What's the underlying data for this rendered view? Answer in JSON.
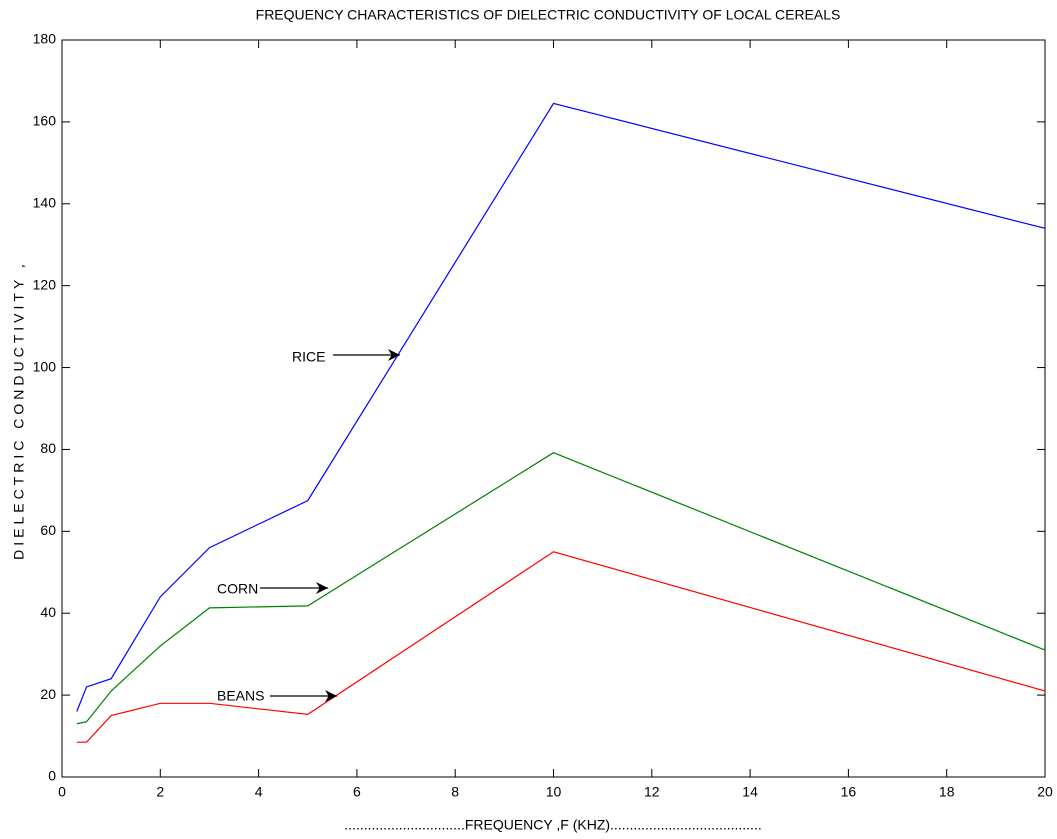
{
  "chart_data": {
    "type": "line",
    "title": "FREQUENCY CHARACTERISTICS OF DIELECTRIC CONDUCTIVITY OF LOCAL CEREALS",
    "x_label": "...............................FREQUENCY ,F (KHZ).......................................",
    "y_label": "DIELECTRIC CONDUCTIVITY ,",
    "x": [
      0.3,
      0.5,
      1,
      2,
      3,
      5,
      10,
      20
    ],
    "series": [
      {
        "color": "#0000ff",
        "values": [
          16,
          22,
          24,
          44,
          56,
          67.5,
          164.5,
          134
        ]
      },
      {
        "color": "#008000",
        "values": [
          13,
          13.5,
          21,
          32,
          41.3,
          41.8,
          79.2,
          31
        ]
      },
      {
        "color": "#ff0000",
        "values": [
          8.5,
          8.5,
          15,
          18,
          18,
          15.3,
          55,
          21
        ]
      }
    ],
    "annotations": [
      "RICE",
      "CORN",
      "BEANS"
    ],
    "xlim": [
      0,
      20
    ],
    "xticks": [
      0,
      2,
      4,
      6,
      8,
      10,
      12,
      14,
      16,
      18,
      20
    ],
    "ylim": [
      0,
      180
    ],
    "yticks": [
      0,
      20,
      40,
      60,
      80,
      100,
      120,
      140,
      160,
      180
    ],
    "grid": false
  }
}
